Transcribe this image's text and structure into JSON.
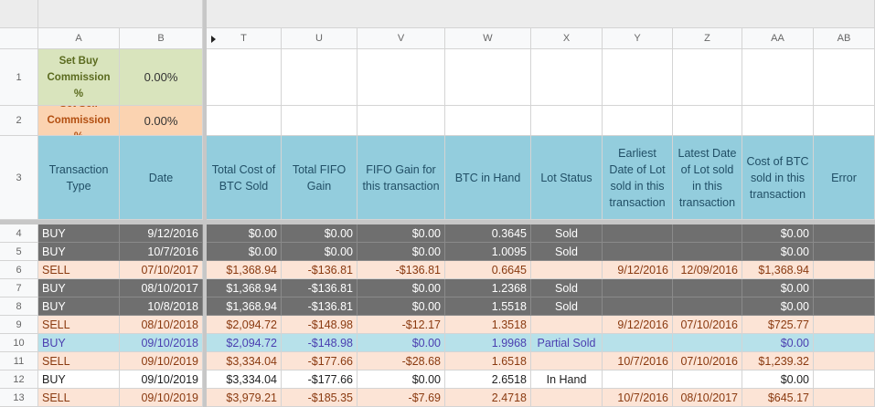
{
  "columns": [
    "A",
    "B",
    "T",
    "U",
    "V",
    "W",
    "X",
    "Y",
    "Z",
    "AA",
    "AB"
  ],
  "settings": {
    "buy_label": "Set Buy Commission %",
    "buy_value": "0.00%",
    "sell_label": "Set Sell Commission %",
    "sell_value": "0.00%"
  },
  "headers": [
    "Transaction Type",
    "Date",
    "Total Cost of BTC Sold",
    "Total FIFO Gain",
    "FIFO Gain for this transaction",
    "BTC in Hand",
    "Lot Status",
    "Earliest Date of Lot sold in this transaction",
    "Latest Date of Lot sold in this transaction",
    "Cost of BTC sold in this transaction",
    "Error"
  ],
  "row_numbers": [
    "1",
    "2",
    "3",
    "4",
    "5",
    "6",
    "7",
    "8",
    "9",
    "10",
    "11",
    "12",
    "13"
  ],
  "rows": [
    {
      "style": "dark",
      "cells": [
        "BUY",
        "9/12/2016",
        "$0.00",
        "$0.00",
        "$0.00",
        "0.3645",
        "Sold",
        "",
        "",
        "$0.00",
        ""
      ]
    },
    {
      "style": "dark",
      "cells": [
        "BUY",
        "10/7/2016",
        "$0.00",
        "$0.00",
        "$0.00",
        "1.0095",
        "Sold",
        "",
        "",
        "$0.00",
        ""
      ]
    },
    {
      "style": "sell",
      "cells": [
        "SELL",
        "07/10/2017",
        "$1,368.94",
        "-$136.81",
        "-$136.81",
        "0.6645",
        "",
        "9/12/2016",
        "12/09/2016",
        "$1,368.94",
        ""
      ]
    },
    {
      "style": "dark",
      "cells": [
        "BUY",
        "08/10/2017",
        "$1,368.94",
        "-$136.81",
        "$0.00",
        "1.2368",
        "Sold",
        "",
        "",
        "$0.00",
        ""
      ]
    },
    {
      "style": "dark",
      "cells": [
        "BUY",
        "10/8/2018",
        "$1,368.94",
        "-$136.81",
        "$0.00",
        "1.5518",
        "Sold",
        "",
        "",
        "$0.00",
        ""
      ]
    },
    {
      "style": "sell",
      "cells": [
        "SELL",
        "08/10/2018",
        "$2,094.72",
        "-$148.98",
        "-$12.17",
        "1.3518",
        "",
        "9/12/2016",
        "07/10/2016",
        "$725.77",
        ""
      ]
    },
    {
      "style": "partial",
      "cells": [
        "BUY",
        "09/10/2018",
        "$2,094.72",
        "-$148.98",
        "$0.00",
        "1.9968",
        "Partial Sold",
        "",
        "",
        "$0.00",
        ""
      ]
    },
    {
      "style": "sell",
      "cells": [
        "SELL",
        "09/10/2019",
        "$3,334.04",
        "-$177.66",
        "-$28.68",
        "1.6518",
        "",
        "10/7/2016",
        "07/10/2016",
        "$1,239.32",
        ""
      ]
    },
    {
      "style": "plain",
      "cells": [
        "BUY",
        "09/10/2019",
        "$3,334.04",
        "-$177.66",
        "$0.00",
        "2.6518",
        "In Hand",
        "",
        "",
        "$0.00",
        ""
      ]
    },
    {
      "style": "sell",
      "cells": [
        "SELL",
        "09/10/2019",
        "$3,979.21",
        "-$185.35",
        "-$7.69",
        "2.4718",
        "",
        "10/7/2016",
        "08/10/2017",
        "$645.17",
        ""
      ]
    }
  ],
  "colors": {
    "dark": "#6f6f6f",
    "sell": "#fce4d6",
    "partial": "#b7e1ea",
    "header": "#93cddd",
    "green": "#d9e4bd",
    "orange": "#fbd3b1"
  }
}
